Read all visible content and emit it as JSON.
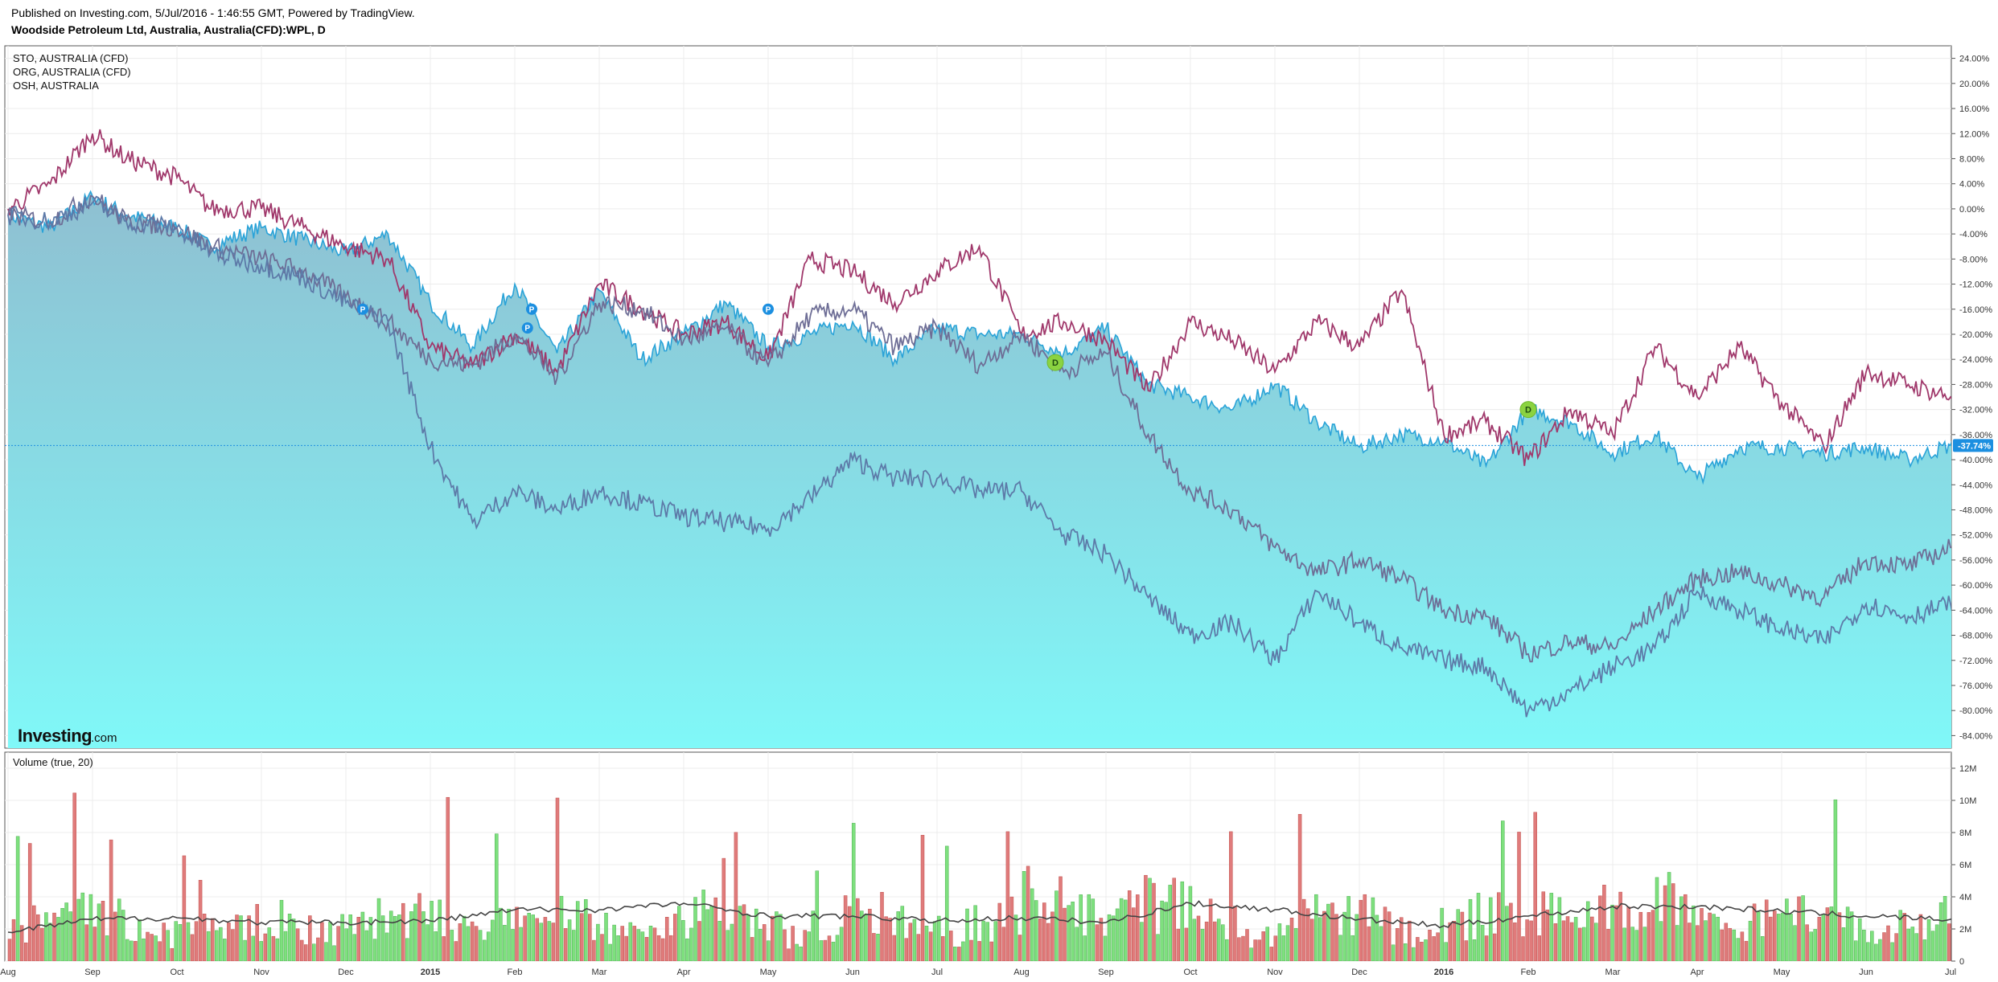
{
  "header": {
    "publish_line": "Published on Investing.com, 5/Jul/2016 - 1:46:55 GMT, Powered by TradingView.",
    "title": "Woodside Petroleum Ltd, Australia, Australia(CFD):WPL, D"
  },
  "brand": {
    "main": "Investing",
    "sub": ".com"
  },
  "colors": {
    "area_top": "#8fbfd1",
    "area_bottom": "#80f8f8",
    "area_line": "#2aa3d8",
    "sto": "#a0386b",
    "org": "#6e6e96",
    "osh": "#5d7aa8",
    "vol_up": "#7ee07e",
    "vol_down": "#e07b7b",
    "vol_ma": "#444444",
    "current_badge": "#1c8fe0",
    "marker_p": "#1c8fe0",
    "marker_d": "#8bd341"
  },
  "chart_data": [
    {
      "type": "area",
      "name": "price-comparison",
      "ylim": [
        -86,
        26
      ],
      "y_ticks": [
        "24.00%",
        "20.00%",
        "16.00%",
        "12.00%",
        "8.00%",
        "4.00%",
        "0.00%",
        "-4.00%",
        "-8.00%",
        "-12.00%",
        "-16.00%",
        "-20.00%",
        "-24.00%",
        "-28.00%",
        "-32.00%",
        "-36.00%",
        "-40.00%",
        "-44.00%",
        "-48.00%",
        "-52.00%",
        "-56.00%",
        "-60.00%",
        "-64.00%",
        "-68.00%",
        "-72.00%",
        "-76.00%",
        "-80.00%",
        "-84.00%"
      ],
      "x_ticks": [
        "Aug",
        "Sep",
        "Oct",
        "Nov",
        "Dec",
        "2015",
        "Feb",
        "Mar",
        "Apr",
        "May",
        "Jun",
        "Jul",
        "Aug",
        "Sep",
        "Oct",
        "Nov",
        "Dec",
        "2016",
        "Feb",
        "Mar",
        "Apr",
        "May",
        "Jun",
        "Jul"
      ],
      "legend": [
        "STO, AUSTRALIA (CFD)",
        "ORG, AUSTRALIA (CFD)",
        "OSH, AUSTRALIA"
      ],
      "current_value_label": "-37.74%",
      "current_value": -37.74,
      "series": [
        {
          "name": "WPL",
          "x": [
            0,
            0.5,
            1,
            1.4,
            2,
            2.4,
            3,
            3.5,
            4,
            4.5,
            5,
            5.5,
            6,
            6.5,
            7,
            7.5,
            8,
            8.5,
            9,
            9.5,
            10,
            10.5,
            11,
            11.5,
            12,
            12.5,
            13,
            13.5,
            14,
            14.5,
            15,
            15.5,
            16,
            16.5,
            17,
            17.5,
            18,
            18.5,
            19,
            19.5,
            20,
            20.5,
            21,
            21.5,
            22,
            22.5,
            23,
            23.3
          ],
          "values": [
            -1,
            -3,
            2,
            -1,
            -3,
            -6,
            -3,
            -5,
            -7,
            -4,
            -15,
            -22,
            -12,
            -23,
            -13,
            -24,
            -20,
            -15,
            -22,
            -20,
            -18,
            -24,
            -19,
            -20,
            -20,
            -23,
            -19,
            -28,
            -30,
            -32,
            -28,
            -34,
            -38,
            -36,
            -37,
            -41,
            -32,
            -34,
            -39,
            -36,
            -43,
            -38,
            -38,
            -39,
            -38,
            -40,
            -37.7,
            -37.74
          ]
        },
        {
          "name": "STO",
          "x": [
            0,
            0.5,
            1,
            1.4,
            2,
            2.4,
            3,
            3.5,
            4,
            4.5,
            5,
            5.5,
            6,
            6.5,
            7,
            7.5,
            8,
            8.5,
            9,
            9.5,
            10,
            10.5,
            11,
            11.5,
            12,
            12.5,
            13,
            13.5,
            14,
            14.5,
            15,
            15.5,
            16,
            16.5,
            17,
            17.5,
            18,
            18.5,
            19,
            19.5,
            20,
            20.5,
            21,
            21.5,
            22,
            22.5,
            23,
            23.3
          ],
          "values": [
            0,
            4,
            12,
            8,
            5,
            0,
            0,
            -3,
            -6,
            -8,
            -22,
            -25,
            -20,
            -26,
            -12,
            -16,
            -20,
            -18,
            -24,
            -8,
            -10,
            -15,
            -10,
            -6,
            -20,
            -18,
            -21,
            -29,
            -18,
            -21,
            -26,
            -18,
            -22,
            -13,
            -36,
            -34,
            -40,
            -32,
            -36,
            -22,
            -30,
            -22,
            -31,
            -38,
            -26,
            -28,
            -30,
            -27
          ]
        },
        {
          "name": "ORG",
          "x": [
            0,
            0.5,
            1,
            1.4,
            2,
            2.4,
            3,
            3.5,
            4,
            4.5,
            5,
            5.5,
            6,
            6.5,
            7,
            7.5,
            8,
            8.5,
            9,
            9.5,
            10,
            10.5,
            11,
            11.5,
            12,
            12.5,
            13,
            13.5,
            14,
            14.5,
            15,
            15.5,
            16,
            16.5,
            17,
            17.5,
            18,
            18.5,
            19,
            19.5,
            20,
            20.5,
            21,
            21.5,
            22,
            22.5,
            23,
            23.3
          ],
          "values": [
            -1,
            -2,
            2,
            -2,
            -3,
            -6,
            -8,
            -10,
            -14,
            -18,
            -24,
            -25,
            -20,
            -27,
            -15,
            -16,
            -21,
            -19,
            -25,
            -17,
            -16,
            -22,
            -19,
            -25,
            -20,
            -26,
            -23,
            -36,
            -45,
            -48,
            -54,
            -58,
            -56,
            -59,
            -64,
            -65,
            -71,
            -69,
            -70,
            -64,
            -59,
            -58,
            -60,
            -62,
            -56,
            -57,
            -54,
            -53
          ]
        },
        {
          "name": "OSH",
          "x": [
            0,
            0.5,
            1,
            1.4,
            2,
            2.4,
            3,
            3.5,
            4,
            4.5,
            5,
            5.5,
            6,
            6.5,
            7,
            7.5,
            8,
            8.5,
            9,
            9.5,
            10,
            10.5,
            11,
            11.5,
            12,
            12.5,
            13,
            13.5,
            14,
            14.5,
            15,
            15.5,
            16,
            16.5,
            17,
            17.5,
            18,
            18.5,
            19,
            19.5,
            20,
            20.5,
            21,
            21.5,
            22,
            22.5,
            23,
            23.3
          ],
          "values": [
            -1,
            -2,
            1,
            -2,
            -3,
            -7,
            -9,
            -11,
            -15,
            -18,
            -38,
            -50,
            -45,
            -48,
            -45,
            -47,
            -49,
            -50,
            -51,
            -46,
            -40,
            -43,
            -43,
            -45,
            -45,
            -52,
            -55,
            -62,
            -68,
            -66,
            -72,
            -61,
            -66,
            -70,
            -72,
            -73,
            -80,
            -77,
            -73,
            -70,
            -61,
            -64,
            -67,
            -69,
            -63,
            -65,
            -63,
            -62.5
          ]
        }
      ]
    },
    {
      "type": "bar",
      "name": "volume",
      "label": "Volume (true, 20)",
      "ylim": [
        0,
        12.5
      ],
      "y_ticks": [
        "12M",
        "10M",
        "8M",
        "6M",
        "4M",
        "2M",
        "0"
      ],
      "ma_x": [
        0,
        1,
        2,
        3,
        4,
        5,
        6,
        7,
        8,
        9,
        10,
        11,
        12,
        13,
        14,
        15,
        16,
        17,
        18,
        19,
        20,
        21,
        22,
        23,
        23.3
      ],
      "ma_values": [
        1.8,
        2.6,
        2.7,
        2.4,
        2.4,
        2.5,
        3.2,
        3.2,
        3.6,
        2.8,
        2.8,
        2.5,
        2.7,
        2.4,
        3.6,
        3.2,
        2.6,
        2.2,
        2.8,
        3.4,
        3.4,
        3.1,
        2.8,
        2.6,
        2.5
      ]
    }
  ]
}
